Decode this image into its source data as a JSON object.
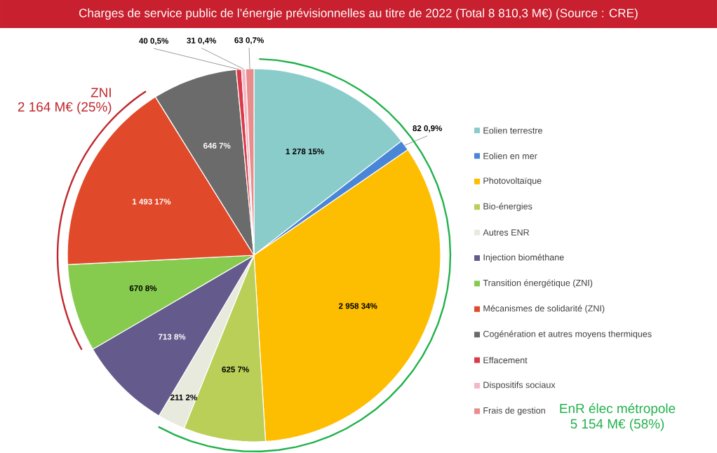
{
  "chart_data": {
    "type": "pie",
    "title": "Charges de service public de l’énergie prévisionnelles au titre de 2022 (Total 8 810,3 M€) (Source : CRE)",
    "categories": [
      "Eolien terrestre",
      "Eolien en mer",
      "Photovoltaïque",
      "Bio-énergies",
      "Autres ENR",
      "Injection biométhane",
      "Transition énergétique (ZNI)",
      "Mécanismes de solidarité (ZNI)",
      "Cogénération et autres moyens thermiques",
      "Effacement",
      "Dispositifs sociaux",
      "Frais de gestion"
    ],
    "values": [
      1278,
      82,
      2958,
      625,
      211,
      713,
      670,
      1493,
      646,
      40,
      31,
      63
    ],
    "colors": [
      "#8accca",
      "#4a86d8",
      "#fdbd00",
      "#b9cf58",
      "#e8eadd",
      "#655a8c",
      "#86cb4e",
      "#e04a2a",
      "#6b6b6b",
      "#d93b4a",
      "#f4b7c6",
      "#e98c8c"
    ],
    "value_labels": [
      "1 278 15%",
      "82 0,9%",
      "2 958 34%",
      "625 7%",
      "211 2%",
      "713 8%",
      "670 8%",
      "1 493 17%",
      "646 7%",
      "40 0,5%",
      "31 0,4%",
      "63 0,7%"
    ],
    "annotations": [
      "ZNI",
      "2 164 M€ (25%)",
      "EnR élec métropole",
      "5 154 M€ (58%)"
    ],
    "legend": "right"
  }
}
